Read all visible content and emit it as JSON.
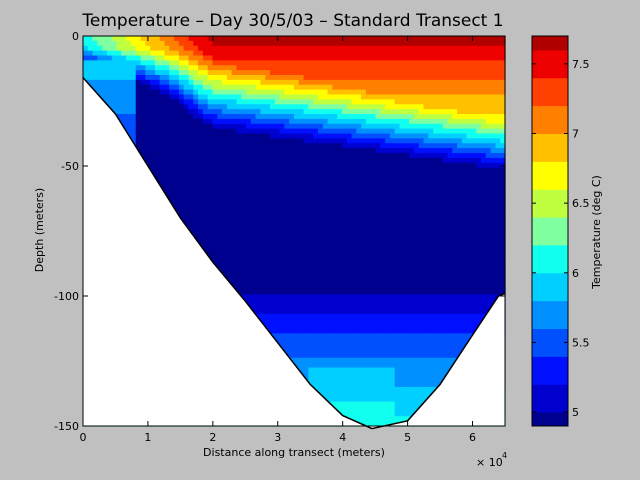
{
  "chart_data": {
    "type": "heatmap",
    "title": "Temperature – Day 30/5/03 – Standard Transect 1",
    "xlabel": "Distance along transect (meters)",
    "ylabel": "Depth (meters)",
    "x_exponent_label": "× 10",
    "x_exponent_power": "4",
    "xlim": [
      0,
      65000
    ],
    "ylim": [
      -150,
      0
    ],
    "x_ticks": [
      {
        "value": 0,
        "label": "0"
      },
      {
        "value": 10000,
        "label": "1"
      },
      {
        "value": 20000,
        "label": "2"
      },
      {
        "value": 30000,
        "label": "3"
      },
      {
        "value": 40000,
        "label": "4"
      },
      {
        "value": 50000,
        "label": "5"
      },
      {
        "value": 60000,
        "label": "6"
      }
    ],
    "y_ticks": [
      {
        "value": 0,
        "label": "0"
      },
      {
        "value": -50,
        "label": "-50"
      },
      {
        "value": -100,
        "label": "-100"
      },
      {
        "value": -150,
        "label": "-150"
      }
    ],
    "colorbar": {
      "label": "Temperature (deg C)",
      "range": [
        4.9,
        7.7
      ],
      "ticks": [
        {
          "value": 5.0,
          "label": "5"
        },
        {
          "value": 5.5,
          "label": "5.5"
        },
        {
          "value": 6.0,
          "label": "6"
        },
        {
          "value": 6.5,
          "label": "6.5"
        },
        {
          "value": 7.0,
          "label": "7"
        },
        {
          "value": 7.5,
          "label": "7.5"
        }
      ],
      "levels": [
        {
          "t": 4.9,
          "color": "#00008f"
        },
        {
          "t": 5.1,
          "color": "#0000cf"
        },
        {
          "t": 5.3,
          "color": "#0010ff"
        },
        {
          "t": 5.5,
          "color": "#0050ff"
        },
        {
          "t": 5.7,
          "color": "#0090ff"
        },
        {
          "t": 5.9,
          "color": "#00cfff"
        },
        {
          "t": 6.1,
          "color": "#10ffef"
        },
        {
          "t": 6.3,
          "color": "#80ffa0"
        },
        {
          "t": 6.5,
          "color": "#c0ff40"
        },
        {
          "t": 6.7,
          "color": "#ffff00"
        },
        {
          "t": 6.9,
          "color": "#ffc000"
        },
        {
          "t": 7.1,
          "color": "#ff8000"
        },
        {
          "t": 7.3,
          "color": "#ff4000"
        },
        {
          "t": 7.5,
          "color": "#ef0000"
        },
        {
          "t": 7.7,
          "color": "#b00000"
        }
      ]
    },
    "bottom_profile": [
      {
        "x": 0,
        "depth": -16
      },
      {
        "x": 5000,
        "depth": -30
      },
      {
        "x": 10000,
        "depth": -50
      },
      {
        "x": 15000,
        "depth": -70
      },
      {
        "x": 20000,
        "depth": -87
      },
      {
        "x": 25000,
        "depth": -102
      },
      {
        "x": 30000,
        "depth": -118
      },
      {
        "x": 35000,
        "depth": -134
      },
      {
        "x": 40000,
        "depth": -146
      },
      {
        "x": 44500,
        "depth": -151
      },
      {
        "x": 50000,
        "depth": -148
      },
      {
        "x": 55000,
        "depth": -134
      },
      {
        "x": 60000,
        "depth": -115
      },
      {
        "x": 64000,
        "depth": -100
      },
      {
        "x": 65000,
        "depth": -99
      }
    ]
  }
}
